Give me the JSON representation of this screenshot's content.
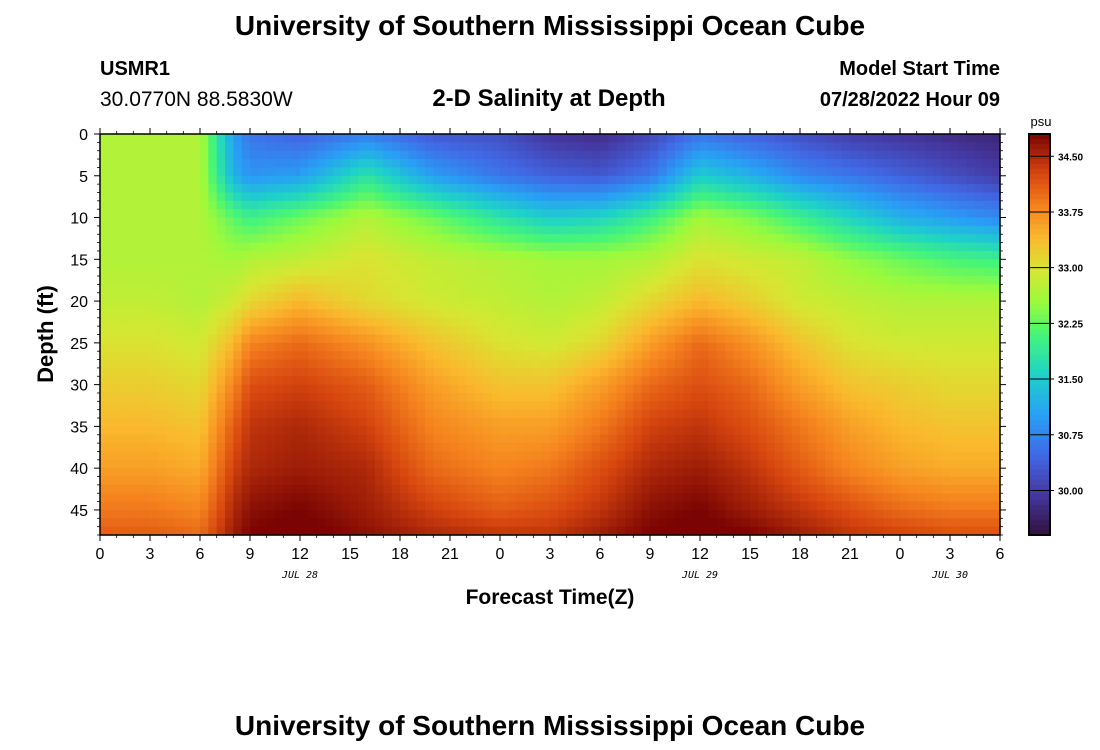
{
  "header": {
    "title": "University of Southern Mississippi Ocean Cube",
    "station_id": "USMR1",
    "coords": "30.0770N  88.5830W",
    "plot_title": "2-D Salinity at Depth",
    "model_start_label": "Model Start Time",
    "model_start_value": "07/28/2022 Hour 09"
  },
  "footer": {
    "title": "University of Southern Mississippi Ocean Cube"
  },
  "chart_data": {
    "type": "heatmap",
    "title": "2-D Salinity at Depth",
    "xlabel": "Forecast Time(Z)",
    "ylabel": "Depth (ft)",
    "x_range_hours": [
      0,
      54
    ],
    "x_ticks": [
      {
        "h": 0,
        "label": "0"
      },
      {
        "h": 3,
        "label": "3"
      },
      {
        "h": 6,
        "label": "6"
      },
      {
        "h": 9,
        "label": "9"
      },
      {
        "h": 12,
        "label": "12"
      },
      {
        "h": 15,
        "label": "15"
      },
      {
        "h": 18,
        "label": "18"
      },
      {
        "h": 21,
        "label": "21"
      },
      {
        "h": 24,
        "label": "0"
      },
      {
        "h": 27,
        "label": "3"
      },
      {
        "h": 30,
        "label": "6"
      },
      {
        "h": 33,
        "label": "9"
      },
      {
        "h": 36,
        "label": "12"
      },
      {
        "h": 39,
        "label": "15"
      },
      {
        "h": 42,
        "label": "18"
      },
      {
        "h": 45,
        "label": "21"
      },
      {
        "h": 48,
        "label": "0"
      },
      {
        "h": 51,
        "label": "3"
      },
      {
        "h": 54,
        "label": "6"
      }
    ],
    "date_labels": [
      {
        "h": 12,
        "label": "JUL 28"
      },
      {
        "h": 36,
        "label": "JUL 29"
      },
      {
        "h": 51,
        "label": "JUL 30"
      }
    ],
    "y_range_ft": [
      0,
      48
    ],
    "y_ticks": [
      0,
      5,
      10,
      15,
      20,
      25,
      30,
      35,
      40,
      45
    ],
    "colorbar": {
      "unit": "psu",
      "range": [
        29.4,
        34.8
      ],
      "ticks": [
        {
          "v": 34.5,
          "label": "34.50"
        },
        {
          "v": 33.75,
          "label": "33.75"
        },
        {
          "v": 33.0,
          "label": "33.00"
        },
        {
          "v": 32.25,
          "label": "32.25"
        },
        {
          "v": 31.5,
          "label": "31.50"
        },
        {
          "v": 30.75,
          "label": "30.75"
        },
        {
          "v": 30.0,
          "label": "30.00"
        }
      ]
    },
    "salinity_grid": {
      "time_hours": [
        0,
        3,
        6,
        8,
        9,
        12,
        16,
        20,
        24,
        27,
        30,
        33,
        36,
        39,
        42,
        45,
        48,
        51,
        54
      ],
      "depth_ft": [
        0,
        5,
        10,
        15,
        20,
        25,
        30,
        35,
        40,
        45,
        48
      ],
      "values_psu": [
        [
          32.7,
          32.7,
          32.7,
          31.0,
          30.6,
          30.4,
          30.7,
          30.3,
          30.2,
          29.9,
          29.8,
          30.1,
          30.6,
          30.4,
          30.2,
          30.0,
          29.9,
          29.8,
          29.7
        ],
        [
          32.7,
          32.7,
          32.7,
          31.2,
          30.9,
          31.0,
          31.8,
          31.0,
          30.6,
          30.4,
          30.3,
          30.6,
          31.5,
          31.2,
          30.8,
          30.6,
          30.4,
          30.2,
          30.0
        ],
        [
          32.7,
          32.7,
          32.7,
          32.2,
          32.0,
          32.3,
          32.7,
          32.3,
          31.8,
          31.5,
          31.6,
          32.0,
          32.6,
          32.4,
          32.0,
          31.6,
          31.2,
          31.0,
          30.8
        ],
        [
          32.7,
          32.7,
          32.7,
          32.6,
          32.7,
          32.8,
          33.0,
          32.8,
          32.7,
          32.6,
          32.6,
          32.7,
          33.0,
          32.9,
          32.8,
          32.5,
          32.3,
          32.1,
          32.0
        ],
        [
          32.8,
          32.8,
          32.7,
          32.9,
          33.1,
          33.4,
          33.1,
          32.9,
          32.8,
          32.7,
          32.8,
          33.1,
          33.4,
          33.2,
          32.9,
          32.8,
          32.7,
          32.7,
          32.7
        ],
        [
          33.0,
          33.0,
          32.9,
          33.4,
          33.8,
          34.0,
          33.7,
          33.3,
          33.0,
          32.9,
          33.1,
          33.6,
          34.0,
          33.7,
          33.3,
          33.0,
          32.9,
          32.9,
          32.9
        ],
        [
          33.2,
          33.2,
          33.1,
          33.8,
          34.2,
          34.3,
          34.1,
          33.6,
          33.3,
          33.3,
          33.6,
          34.0,
          34.2,
          34.0,
          33.6,
          33.3,
          33.2,
          33.1,
          33.1
        ],
        [
          33.4,
          33.4,
          33.3,
          34.1,
          34.4,
          34.5,
          34.3,
          33.8,
          33.6,
          33.6,
          33.9,
          34.3,
          34.4,
          34.2,
          33.9,
          33.6,
          33.4,
          33.3,
          33.3
        ],
        [
          33.6,
          33.6,
          33.5,
          34.3,
          34.5,
          34.6,
          34.5,
          34.0,
          33.8,
          33.9,
          34.2,
          34.5,
          34.6,
          34.4,
          34.1,
          33.8,
          33.6,
          33.5,
          33.5
        ],
        [
          33.9,
          33.9,
          33.8,
          34.5,
          34.7,
          34.8,
          34.6,
          34.3,
          34.1,
          34.2,
          34.4,
          34.7,
          34.8,
          34.6,
          34.4,
          34.2,
          34.0,
          33.9,
          33.9
        ],
        [
          34.1,
          34.1,
          34.0,
          34.6,
          34.8,
          34.9,
          34.7,
          34.5,
          34.4,
          34.4,
          34.6,
          34.8,
          34.9,
          34.8,
          34.6,
          34.4,
          34.3,
          34.2,
          34.2
        ]
      ]
    }
  }
}
